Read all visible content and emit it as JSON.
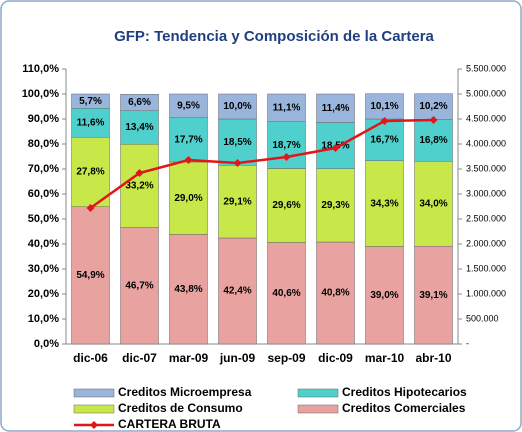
{
  "chart_data": {
    "type": "bar",
    "stacked": true,
    "title": "GFP:  Tendencia y Composición de la Cartera",
    "categories": [
      "dic-06",
      "dic-07",
      "mar-09",
      "jun-09",
      "sep-09",
      "dic-09",
      "mar-10",
      "abr-10"
    ],
    "series": [
      {
        "name": "Creditos Comerciales",
        "color": "#e8a3a1",
        "values": [
          54.9,
          46.7,
          43.8,
          42.4,
          40.6,
          40.8,
          39.0,
          39.1
        ],
        "value_labels": [
          "54,9%",
          "46,7%",
          "43,8%",
          "42,4%",
          "40,6%",
          "40,8%",
          "39,0%",
          "39,1%"
        ]
      },
      {
        "name": "Creditos de Consumo",
        "color": "#c8e84a",
        "values": [
          27.8,
          33.2,
          29.0,
          29.1,
          29.6,
          29.3,
          34.3,
          34.0
        ],
        "value_labels": [
          "27,8%",
          "33,2%",
          "29,0%",
          "29,1%",
          "29,6%",
          "29,3%",
          "34,3%",
          "34,0%"
        ]
      },
      {
        "name": "Creditos Hipotecarios",
        "color": "#4fd0cc",
        "values": [
          11.6,
          13.4,
          17.7,
          18.5,
          18.7,
          18.5,
          16.7,
          16.8
        ],
        "value_labels": [
          "11,6%",
          "13,4%",
          "17,7%",
          "18,5%",
          "18,7%",
          "18,5%",
          "16,7%",
          "16,8%"
        ]
      },
      {
        "name": "Creditos Microempresa",
        "color": "#9ab5dc",
        "values": [
          5.7,
          6.6,
          9.5,
          10.0,
          11.1,
          11.4,
          10.1,
          10.2
        ],
        "value_labels": [
          "5,7%",
          "6,6%",
          "9,5%",
          "10,0%",
          "11,1%",
          "11,4%",
          "10,1%",
          "10,2%"
        ]
      },
      {
        "name": "CARTERA BRUTA",
        "type": "line",
        "axis": "y2",
        "color": "#e0161b",
        "values": [
          2720000,
          3420000,
          3680000,
          3620000,
          3740000,
          3920000,
          4460000,
          4480000
        ]
      }
    ],
    "ylim": [
      0,
      110
    ],
    "yticks": [
      {
        "value": 0,
        "label": "0,0%"
      },
      {
        "value": 10,
        "label": "10,0%"
      },
      {
        "value": 20,
        "label": "20,0%"
      },
      {
        "value": 30,
        "label": "30,0%"
      },
      {
        "value": 40,
        "label": "40,0%"
      },
      {
        "value": 50,
        "label": "50,0%"
      },
      {
        "value": 60,
        "label": "60,0%"
      },
      {
        "value": 70,
        "label": "70,0%"
      },
      {
        "value": 80,
        "label": "80,0%"
      },
      {
        "value": 90,
        "label": "90,0%"
      },
      {
        "value": 100,
        "label": "100,0%"
      },
      {
        "value": 110,
        "label": "110,0%"
      }
    ],
    "y2lim": [
      0,
      5500000
    ],
    "y2ticks": [
      {
        "value": 0,
        "label": "-"
      },
      {
        "value": 500000,
        "label": "500.000"
      },
      {
        "value": 1000000,
        "label": "1.000.000"
      },
      {
        "value": 1500000,
        "label": "1.500.000"
      },
      {
        "value": 2000000,
        "label": "2.000.000"
      },
      {
        "value": 2500000,
        "label": "2.500.000"
      },
      {
        "value": 3000000,
        "label": "3.000.000"
      },
      {
        "value": 3500000,
        "label": "3.500.000"
      },
      {
        "value": 4000000,
        "label": "4.000.000"
      },
      {
        "value": 4500000,
        "label": "4.500.000"
      },
      {
        "value": 5000000,
        "label": "5.000.000"
      },
      {
        "value": 5500000,
        "label": "5.500.000"
      }
    ],
    "grid": false
  }
}
